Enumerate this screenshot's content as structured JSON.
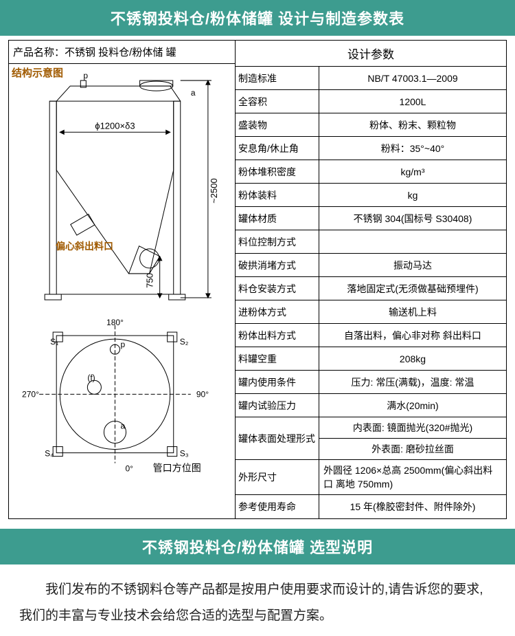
{
  "banner1": "不锈钢投料仓/粉体储罐  设计与制造参数表",
  "banner2": "不锈钢投料仓/粉体储罐  选型说明",
  "product_name_label": "产品名称：不锈钢 投料仓/粉体储 罐",
  "diagram": {
    "struct_label": "结构示意图",
    "outlet_label": "偏心斜出料口",
    "orient_label": "管口方位图",
    "dim_diameter": "ϕ1200×δ3",
    "dim_height": "~2500",
    "dim_outlet_h": "750",
    "angles": {
      "top": "180°",
      "right": "90°",
      "bottom": "0°",
      "left": "270°"
    },
    "ports": {
      "p": "p",
      "a": "a",
      "f": "(f)",
      "s1": "S₁",
      "s2": "S₂",
      "s3": "S₃",
      "s4": "S₄"
    }
  },
  "param_title": "设计参数",
  "params": [
    {
      "label": "制造标准",
      "value": "NB/T 47003.1—2009"
    },
    {
      "label": "全容积",
      "value": "1200L"
    },
    {
      "label": "盛装物",
      "value": "粉体、粉末、颗粒物"
    },
    {
      "label": "安息角/休止角",
      "value": "粉料：35°~40°"
    },
    {
      "label": "粉体堆积密度",
      "value": "kg/m³"
    },
    {
      "label": "粉体装料",
      "value": "kg"
    },
    {
      "label": "罐体材质",
      "value": "不锈钢 304(国标号 S30408)"
    },
    {
      "label": "料位控制方式",
      "value": ""
    },
    {
      "label": "破拱消堵方式",
      "value": "振动马达"
    },
    {
      "label": "料仓安装方式",
      "value": "落地固定式(无须做基础预埋件)"
    },
    {
      "label": "进粉体方式",
      "value": "输送机上料"
    },
    {
      "label": "粉体出料方式",
      "value": "自落出料，偏心非对称 斜出料口"
    },
    {
      "label": "料罐空重",
      "value": "208kg"
    },
    {
      "label": "罐内使用条件",
      "value": "压力: 常压(满载)，温度: 常温"
    },
    {
      "label": "罐内试验压力",
      "value": "满水(20min)"
    },
    {
      "label": "罐体表面处理形式",
      "stacked": [
        "内表面: 镜面抛光(320#抛光)",
        "外表面: 磨砂拉丝面"
      ]
    },
    {
      "label": "外形尺寸",
      "value": "外圆径 1206×总高 2500mm(偏心斜出料口 离地 750mm)",
      "align": "left"
    },
    {
      "label": "参考使用寿命",
      "value": "15 年(橡胶密封件、附件除外)"
    }
  ],
  "description": "我们发布的不锈钢料仓等产品都是按用户使用要求而设计的,请告诉您的要求,我们的丰富与专业技术会给您合适的选型与配置方案。",
  "diagram_style": {
    "stroke": "#000",
    "stroke_width": 1,
    "fill": "none",
    "label_color": "#a05a00",
    "text_color": "#000",
    "text_size": 11
  }
}
